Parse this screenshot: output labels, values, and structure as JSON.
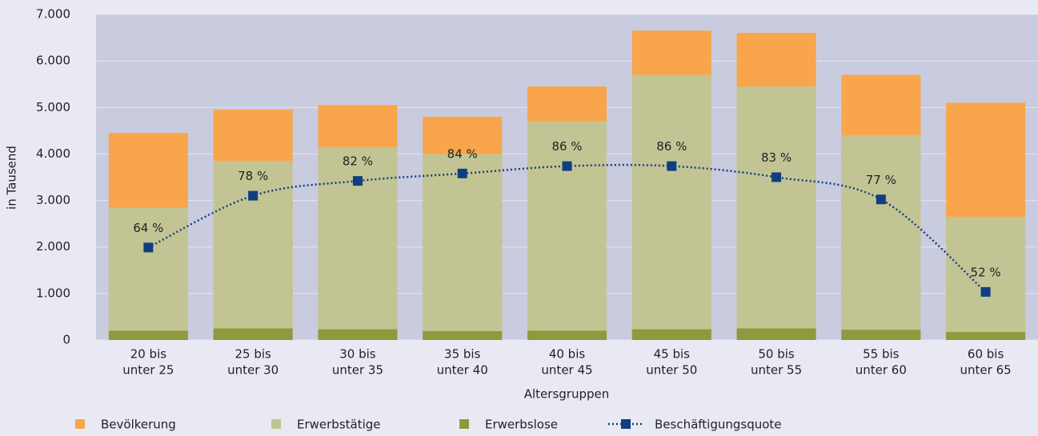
{
  "chart_data": {
    "type": "bar",
    "y_label": "in Tausend",
    "x_label": "Altersgruppen",
    "categories": [
      [
        "20 bis",
        "unter 25"
      ],
      [
        "25 bis",
        "unter 30"
      ],
      [
        "30 bis",
        "unter 35"
      ],
      [
        "35 bis",
        "unter 40"
      ],
      [
        "40 bis",
        "unter 45"
      ],
      [
        "45 bis",
        "unter 50"
      ],
      [
        "50 bis",
        "unter 55"
      ],
      [
        "55 bis",
        "unter 60"
      ],
      [
        "60 bis",
        "unter 65"
      ]
    ],
    "series": [
      {
        "name": "Bevölkerung",
        "type": "bar",
        "color": "#f9a54b",
        "values": [
          4450,
          4950,
          5050,
          4800,
          5450,
          6650,
          6600,
          5700,
          5100
        ]
      },
      {
        "name": "Erwerbstätige",
        "type": "bar",
        "color": "#c3c494",
        "values": [
          2850,
          3850,
          4150,
          4000,
          4700,
          5700,
          5450,
          4400,
          2650
        ]
      },
      {
        "name": "Erwerbslose",
        "type": "bar",
        "color": "#8d9a3d",
        "values": [
          200,
          250,
          230,
          190,
          200,
          230,
          250,
          220,
          170
        ]
      },
      {
        "name": "Beschäftigungsquote",
        "type": "line",
        "axis": "y2",
        "color": "#0f3f80",
        "values": [
          64,
          78,
          82,
          84,
          86,
          86,
          83,
          77,
          52
        ],
        "value_labels": [
          "64 %",
          "78 %",
          "82 %",
          "84 %",
          "86 %",
          "86 %",
          "83 %",
          "77 %",
          "52 %"
        ]
      }
    ],
    "ylim": [
      0,
      7000
    ],
    "yticks": [
      0,
      {
        "value": 1000,
        "label": "1.000"
      },
      {
        "value": 2000,
        "label": "2.000"
      },
      {
        "value": 3000,
        "label": "3.000"
      },
      {
        "value": 4000,
        "label": "4.000"
      },
      {
        "value": 5000,
        "label": "5.000"
      },
      {
        "value": 6000,
        "label": "6.000"
      },
      {
        "value": 7000,
        "label": "7.000"
      }
    ],
    "y2lim": [
      39,
      127
    ],
    "grid": true
  }
}
